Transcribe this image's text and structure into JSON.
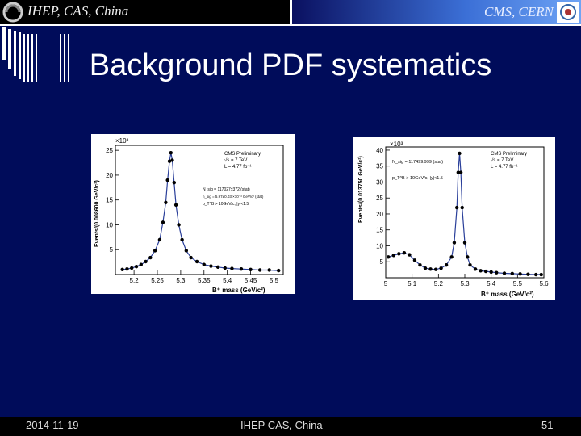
{
  "header": {
    "left_text": "IHEP, CAS, China",
    "right_text": "CMS, CERN"
  },
  "slide": {
    "title": "Background PDF systematics"
  },
  "footer": {
    "date": "2014-11-19",
    "center": "IHEP CAS, China",
    "page": "51"
  },
  "plots": [
    {
      "multiplier": "×10³",
      "ylabel": "Events/(0.008600 GeV/c²)",
      "xlabel": "B⁺ mass (GeV/c²)",
      "legend": [
        "CMS Preliminary",
        "√s = 7 TeV",
        "L = 4.77 fb⁻¹"
      ],
      "fit_lines": [
        "N_sig = 117027±372 (stat)",
        "n_sig = 5.97±0.03 ×10⁻³ GeV/c² (stat)",
        "p_T^B > 10GeV/c, |y|<1.5"
      ]
    },
    {
      "multiplier": "×10³",
      "ylabel": "Events/(0.013750 GeV/c²)",
      "xlabel": "B⁺ mass (GeV/c²)",
      "legend": [
        "CMS Preliminary",
        "√s = 7 TeV",
        "L = 4.77 fb⁻¹"
      ],
      "fit_lines": [
        "N_sig = 117499.999 (stat)",
        "p_T^B > 10GeV/c, |y|<1.5"
      ]
    }
  ],
  "chart_data": [
    {
      "type": "scatter",
      "title": "",
      "xlabel": "B⁺ mass (GeV/c²)",
      "ylabel": "Events/(0.008600 GeV/c²)",
      "y_multiplier": "×10³",
      "xlim": [
        5.16,
        5.52
      ],
      "ylim": [
        0,
        26
      ],
      "xticks": [
        "5.2",
        "5.25",
        "5.3",
        "5.35",
        "5.4",
        "5.45",
        "5.5"
      ],
      "yticks": [
        "5",
        "10",
        "15",
        "20",
        "25"
      ],
      "series": [
        {
          "x": [
            5.175,
            5.185,
            5.195,
            5.205,
            5.215,
            5.225,
            5.235,
            5.245,
            5.255,
            5.262,
            5.268,
            5.272,
            5.276,
            5.279,
            5.282,
            5.286,
            5.29,
            5.296,
            5.303,
            5.312,
            5.322,
            5.335,
            5.35,
            5.365,
            5.38,
            5.395,
            5.41,
            5.43,
            5.45,
            5.47,
            5.49,
            5.51
          ],
          "y": [
            1.0,
            1.1,
            1.3,
            1.6,
            2.0,
            2.6,
            3.4,
            4.8,
            7.0,
            10.5,
            14.5,
            19.0,
            22.8,
            24.5,
            23.0,
            18.5,
            14.0,
            10.0,
            7.0,
            4.8,
            3.4,
            2.6,
            2.0,
            1.7,
            1.5,
            1.3,
            1.2,
            1.1,
            1.0,
            0.9,
            0.9,
            0.8
          ]
        }
      ]
    },
    {
      "type": "scatter",
      "title": "",
      "xlabel": "B⁺ mass (GeV/c²)",
      "ylabel": "Events/(0.013750 GeV/c²)",
      "y_multiplier": "×10³",
      "xlim": [
        5.0,
        5.6
      ],
      "ylim": [
        0,
        41
      ],
      "xticks": [
        "5",
        "5.1",
        "5.2",
        "5.3",
        "5.4",
        "5.5",
        "5.6"
      ],
      "yticks": [
        "5",
        "10",
        "15",
        "20",
        "25",
        "30",
        "35",
        "40"
      ],
      "series": [
        {
          "x": [
            5.01,
            5.03,
            5.05,
            5.07,
            5.09,
            5.11,
            5.13,
            5.15,
            5.17,
            5.19,
            5.21,
            5.23,
            5.25,
            5.26,
            5.27,
            5.275,
            5.28,
            5.285,
            5.29,
            5.3,
            5.31,
            5.32,
            5.34,
            5.36,
            5.38,
            5.4,
            5.42,
            5.45,
            5.48,
            5.51,
            5.54,
            5.57,
            5.59
          ],
          "y": [
            6.5,
            7.0,
            7.5,
            7.8,
            7.2,
            5.5,
            4.0,
            3.0,
            2.7,
            2.6,
            3.0,
            4.0,
            6.5,
            11.0,
            22.0,
            33.0,
            39.0,
            33.0,
            22.0,
            11.0,
            6.5,
            4.0,
            2.7,
            2.2,
            2.0,
            1.8,
            1.6,
            1.4,
            1.3,
            1.2,
            1.1,
            1.0,
            1.0
          ]
        }
      ]
    }
  ]
}
